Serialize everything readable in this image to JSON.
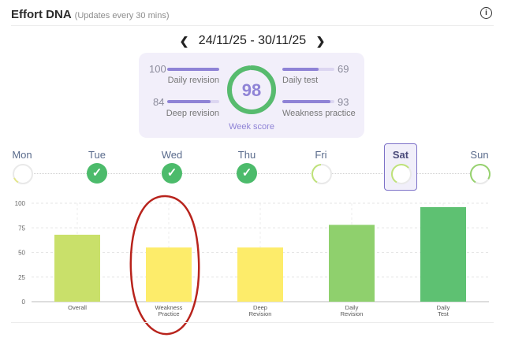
{
  "header": {
    "title": "Effort DNA",
    "subtitle": "(Updates every 30 mins)",
    "info_icon": "info-icon"
  },
  "date_nav": {
    "range": "24/11/25 - 30/11/25",
    "prev_icon": "chevron-left-icon",
    "next_icon": "chevron-right-icon"
  },
  "week_score": {
    "value": "98",
    "label": "Week score",
    "ring_color": "#57bb6e",
    "metrics": [
      {
        "name": "Daily revision",
        "value": "100",
        "fraction": 1.0
      },
      {
        "name": "Daily test",
        "value": "69",
        "fraction": 0.69
      },
      {
        "name": "Deep revision",
        "value": "84",
        "fraction": 0.84
      },
      {
        "name": "Weakness practice",
        "value": "93",
        "fraction": 0.93
      }
    ]
  },
  "days": [
    {
      "label": "Mon",
      "status": "ring",
      "ring_color": "#e3e68a",
      "fraction": 0.1
    },
    {
      "label": "Tue",
      "status": "done"
    },
    {
      "label": "Wed",
      "status": "done"
    },
    {
      "label": "Thu",
      "status": "done"
    },
    {
      "label": "Fri",
      "status": "ring",
      "ring_color": "#bfe27a",
      "fraction": 0.4
    },
    {
      "label": "Sat",
      "status": "ring",
      "ring_color": "#bfe27a",
      "fraction": 0.55,
      "selected": true
    },
    {
      "label": "Sun",
      "status": "ring",
      "ring_color": "#97d26f",
      "fraction": 0.75
    }
  ],
  "chart_data": {
    "type": "bar",
    "categories": [
      "Overall",
      "Weakness Practice",
      "Deep Revision",
      "Daily Revision",
      "Daily Test"
    ],
    "values": [
      68,
      55,
      55,
      78,
      96
    ],
    "colors": [
      "#c9e06a",
      "#fdec6a",
      "#fdec6a",
      "#8fd06d",
      "#5ec172"
    ],
    "ylim": [
      0,
      100
    ],
    "yticks": [
      "0",
      "25",
      "50",
      "75",
      "100"
    ],
    "grid": true
  }
}
